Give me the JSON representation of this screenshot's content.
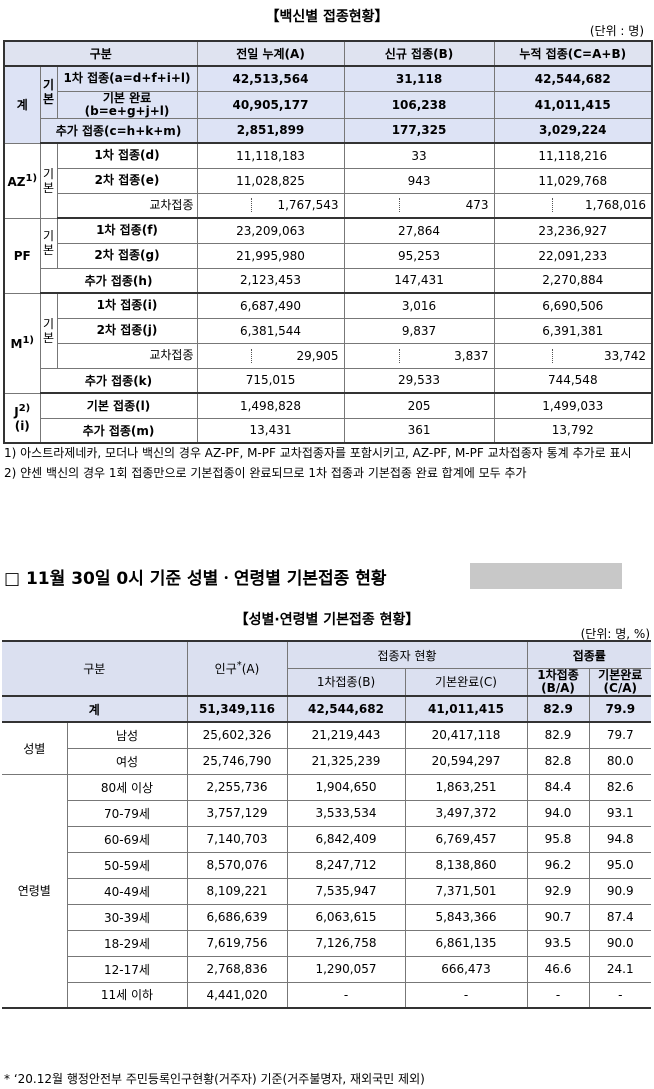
{
  "table1": {
    "title": "【백신별 접종현황】",
    "unit": "(단위 : 명)",
    "header": [
      "구분",
      "전일 누계(A)",
      "신규 접종(B)",
      "누적 접종(C=A+B)"
    ],
    "groups": [
      {
        "name": "계",
        "basic": "기본",
        "basic_rows": 2,
        "rows": [
          {
            "label": "1차 접종(a=d+f+i+l)",
            "values": [
              "42,513,564",
              "31,118",
              "42,544,682"
            ]
          },
          {
            "label": "기본 완료\n(b=e+g+j+l)",
            "values": [
              "40,905,177",
              "106,238",
              "41,011,415"
            ]
          },
          {
            "label": "추가 접종(c=h+k+m)",
            "values": [
              "2,851,899",
              "177,325",
              "3,029,224"
            ]
          }
        ]
      },
      {
        "name": "AZ",
        "sup": "1)",
        "basic": "기본",
        "basic_rows": 3,
        "rows": [
          {
            "label": "1차 접종(d)",
            "values": [
              "11,118,183",
              "33",
              "11,118,216"
            ]
          },
          {
            "label": "2차 접종(e)",
            "values": [
              "11,028,825",
              "943",
              "11,029,768"
            ]
          },
          {
            "label": "교차접종",
            "cross": true,
            "values": [
              "1,767,543",
              "473",
              "1,768,016"
            ]
          }
        ]
      },
      {
        "name": "PF",
        "basic": "기본",
        "basic_rows": 2,
        "rows": [
          {
            "label": "1차 접종(f)",
            "values": [
              "23,209,063",
              "27,864",
              "23,236,927"
            ]
          },
          {
            "label": "2차 접종(g)",
            "values": [
              "21,995,980",
              "95,253",
              "22,091,233"
            ]
          },
          {
            "label": "추가 접종(h)",
            "values": [
              "2,123,453",
              "147,431",
              "2,270,884"
            ]
          }
        ]
      },
      {
        "name": "M",
        "sup": "1)",
        "basic": "기본",
        "basic_rows": 3,
        "rows": [
          {
            "label": "1차 접종(i)",
            "values": [
              "6,687,490",
              "3,016",
              "6,690,506"
            ]
          },
          {
            "label": "2차 접종(j)",
            "values": [
              "6,381,544",
              "9,837",
              "6,391,381"
            ]
          },
          {
            "label": "교차접종",
            "cross": true,
            "values": [
              "29,905",
              "3,837",
              "33,742"
            ]
          },
          {
            "label": "추가 접종(k)",
            "values": [
              "715,015",
              "29,533",
              "744,548"
            ]
          }
        ]
      },
      {
        "name": "J",
        "sup": "2)",
        "sub": "(i)",
        "rows": [
          {
            "label": "기본 접종(l)",
            "values": [
              "1,498,828",
              "205",
              "1,499,033"
            ]
          },
          {
            "label": "추가 접종(m)",
            "values": [
              "13,431",
              "361",
              "13,792"
            ]
          }
        ]
      }
    ],
    "notes": [
      "1) 아스트라제네카, 모더나 백신의 경우 AZ-PF, M-PF 교차접종자를 포함시키고, AZ-PF, M-PF 교차접종자 통계 추가로 표시",
      "2) 얀센 백신의 경우 1회 접종만으로 기본접종이 완료되므로 1차 접종과 기본접종 완료 합계에 모두 추가"
    ]
  },
  "section_heading": "□ 11월 30일 0시 기준 성별ㆍ연령별 기본접종 현황",
  "table2": {
    "title": "【성별·연령별 기본접종 현황】",
    "unit": "(단위: 명, %)",
    "header": {
      "category": "구분",
      "population": {
        "label": "인구",
        "sup": "*",
        "suffix": "(A)"
      },
      "vaccinated": "접종자 현황",
      "first": "1차접종(B)",
      "complete": "기본완료(C)",
      "rate": "접종률",
      "first_rate": "1차접종\n(B/A)",
      "complete_rate": "기본완료\n(C/A)"
    },
    "total": {
      "label": "계",
      "values": [
        "51,349,116",
        "42,544,682",
        "41,011,415",
        "82.9",
        "79.9"
      ]
    },
    "groups": [
      {
        "name": "성별",
        "rows": [
          {
            "label": "남성",
            "values": [
              "25,602,326",
              "21,219,443",
              "20,417,118",
              "82.9",
              "79.7"
            ]
          },
          {
            "label": "여성",
            "values": [
              "25,746,790",
              "21,325,239",
              "20,594,297",
              "82.8",
              "80.0"
            ]
          }
        ]
      },
      {
        "name": "연령별",
        "rows": [
          {
            "label": "80세 이상",
            "values": [
              "2,255,736",
              "1,904,650",
              "1,863,251",
              "84.4",
              "82.6"
            ]
          },
          {
            "label": "70-79세",
            "values": [
              "3,757,129",
              "3,533,534",
              "3,497,372",
              "94.0",
              "93.1"
            ]
          },
          {
            "label": "60-69세",
            "values": [
              "7,140,703",
              "6,842,409",
              "6,769,457",
              "95.8",
              "94.8"
            ]
          },
          {
            "label": "50-59세",
            "values": [
              "8,570,076",
              "8,247,712",
              "8,138,860",
              "96.2",
              "95.0"
            ]
          },
          {
            "label": "40-49세",
            "values": [
              "8,109,221",
              "7,535,947",
              "7,371,501",
              "92.9",
              "90.9"
            ]
          },
          {
            "label": "30-39세",
            "values": [
              "6,686,639",
              "6,063,615",
              "5,843,366",
              "90.7",
              "87.4"
            ]
          },
          {
            "label": "18-29세",
            "values": [
              "7,619,756",
              "7,126,758",
              "6,861,135",
              "93.5",
              "90.0"
            ]
          },
          {
            "label": "12-17세",
            "values": [
              "2,768,836",
              "1,290,057",
              "666,473",
              "46.6",
              "24.1"
            ]
          },
          {
            "label": "11세 이하",
            "values": [
              "4,441,020",
              "-",
              "-",
              "-",
              "-"
            ]
          }
        ]
      }
    ],
    "footnote": "* ‘20.12월 행정안전부 주민등록인구현황(거주자) 기준(거주불명자, 재외국민 제외)"
  }
}
